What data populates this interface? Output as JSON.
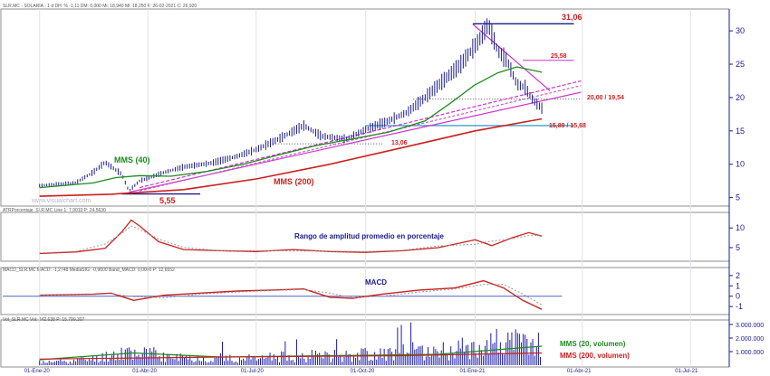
{
  "headers": {
    "price": "SLR.MC - SOLARIA - 1 d DH: % -1,11 DM: 0,000 Mi: 18,940 Mi: 18,250 F: 26-02-2021 C: 26,920",
    "atr": "ATRPorcentaje_SLR.MC Line 1: 7,9019 P: 24,5630",
    "macd": "MACD_SLR.MC MACD: -1,2748 MediaSIG: -0,9600 Band_MACD: 0,0000 P: 12,6552",
    "vol": "Vol_SLR.MC Vol: 242.638 P: 15.799.307"
  },
  "watermark": "www.visualchart.com",
  "annotations": {
    "mms40": "MMS (40)",
    "mms200": "MMS (200)",
    "low": "5,55",
    "high": "31,06",
    "level_25": "25,58",
    "level_20": "20,00 / 19,54",
    "level_15": "15,89 / 15,68",
    "level_13": "13,06",
    "atr_title": "Rango de amplitud promedio en porcentaje",
    "macd_title": "MACD",
    "vol_mms20": "MMS (20, volumen)",
    "vol_mms200": "MMS (200, volumen)"
  },
  "colors": {
    "price_bars": "#1a1a8c",
    "mms40": "#1f8a1f",
    "mms200": "#cc1f1f",
    "trend": "#cc33cc",
    "channel": "#c060c0",
    "support": "#3fa0d0",
    "hline_blue": "#1a1a8c",
    "axis": "#1a1a8c"
  },
  "chart_data": [
    {
      "type": "line",
      "panel": "price",
      "title": "",
      "ylim": [
        4,
        33
      ],
      "y_ticks": [
        "5",
        "10",
        "15",
        "20",
        "25",
        "30"
      ],
      "x_ticks": [
        "01-Ene-20",
        "01-Abr-20",
        "01-Jul-20",
        "01-Oct-20",
        "01-Ene-21",
        "01-Abr-21",
        "01-Jul-21"
      ],
      "series": [
        {
          "name": "Precio",
          "x": [
            "2020-01-01",
            "2020-01-31",
            "2020-02-15",
            "2020-02-25",
            "2020-03-10",
            "2020-03-16",
            "2020-03-25",
            "2020-04-15",
            "2020-05-01",
            "2020-05-25",
            "2020-06-15",
            "2020-07-01",
            "2020-07-20",
            "2020-08-10",
            "2020-08-25",
            "2020-09-15",
            "2020-10-01",
            "2020-10-20",
            "2020-11-05",
            "2020-11-20",
            "2020-12-05",
            "2020-12-20",
            "2021-01-04",
            "2021-01-12",
            "2021-01-20",
            "2021-01-28",
            "2021-02-05",
            "2021-02-12",
            "2021-02-19",
            "2021-02-26"
          ],
          "values": [
            6.8,
            7.2,
            8.8,
            10.3,
            8.5,
            6.0,
            7.5,
            8.8,
            9.6,
            10.2,
            11.2,
            12.2,
            13.8,
            15.8,
            14.2,
            13.8,
            15.2,
            16.5,
            17.8,
            20.0,
            22.5,
            25.0,
            28.5,
            31.0,
            27.0,
            25.5,
            22.0,
            21.5,
            19.5,
            18.4
          ]
        },
        {
          "name": "MMS (40)",
          "x": [
            "2020-01-01",
            "2020-02-15",
            "2020-03-05",
            "2020-03-25",
            "2020-04-20",
            "2020-05-20",
            "2020-06-20",
            "2020-07-20",
            "2020-08-20",
            "2020-09-20",
            "2020-10-20",
            "2020-11-20",
            "2020-12-10",
            "2020-12-31",
            "2021-01-20",
            "2021-02-05",
            "2021-02-26"
          ],
          "values": [
            6.5,
            7.2,
            8.0,
            8.3,
            8.2,
            8.9,
            10.0,
            11.4,
            12.8,
            13.8,
            14.8,
            16.5,
            19.0,
            21.8,
            23.7,
            24.6,
            23.8
          ]
        },
        {
          "name": "MMS (200)",
          "x": [
            "2020-01-01",
            "2020-03-01",
            "2020-05-01",
            "2020-07-01",
            "2020-09-01",
            "2020-11-01",
            "2021-01-01",
            "2021-02-26"
          ],
          "values": [
            5.2,
            5.5,
            6.2,
            7.8,
            10.0,
            12.5,
            15.0,
            16.8
          ]
        }
      ],
      "lines": [
        {
          "kind": "horizontal",
          "y": 31.06,
          "x0": "2020-12-30",
          "x1": "2021-03-25"
        },
        {
          "kind": "horizontal",
          "y": 25.58,
          "x0": "2021-02-10",
          "x1": "2021-03-25"
        },
        {
          "kind": "horizontal",
          "y": 19.77,
          "x0": "2020-11-10",
          "x1": "2021-03-31"
        },
        {
          "kind": "horizontal",
          "y": 15.8,
          "x0": "2020-10-01",
          "x1": "2021-03-25"
        },
        {
          "kind": "horizontal",
          "y": 13.06,
          "x0": "2020-07-15",
          "x1": "2020-10-15"
        },
        {
          "kind": "horizontal",
          "y": 5.55,
          "x0": "2020-03-10",
          "x1": "2020-05-15"
        },
        {
          "kind": "trend",
          "from": [
            "2020-03-16",
            5.8
          ],
          "to": [
            "2021-03-31",
            20.8
          ]
        },
        {
          "kind": "trend",
          "from": [
            "2020-03-25",
            6.5
          ],
          "to": [
            "2021-03-31",
            22.5
          ]
        },
        {
          "kind": "trend",
          "from": [
            "2020-03-25",
            6.0
          ],
          "to": [
            "2021-03-31",
            21.8
          ]
        },
        {
          "kind": "trend",
          "from": [
            "2020-12-30",
            31.0
          ],
          "to": [
            "2021-03-05",
            21.0
          ]
        }
      ]
    },
    {
      "type": "line",
      "panel": "atr",
      "ylim": [
        2,
        13.5
      ],
      "y_ticks": [
        "5",
        "10"
      ],
      "series": [
        {
          "name": "ATR %",
          "x": [
            "2020-01-01",
            "2020-02-01",
            "2020-02-25",
            "2020-03-10",
            "2020-03-18",
            "2020-03-25",
            "2020-04-10",
            "2020-05-01",
            "2020-06-01",
            "2020-07-01",
            "2020-08-01",
            "2020-09-01",
            "2020-10-01",
            "2020-11-01",
            "2020-12-01",
            "2021-01-01",
            "2021-01-15",
            "2021-02-01",
            "2021-02-15",
            "2021-02-26"
          ],
          "values": [
            3.5,
            3.9,
            4.8,
            9.0,
            12.0,
            10.5,
            6.5,
            4.5,
            4.2,
            4.0,
            4.5,
            4.0,
            3.8,
            4.2,
            5.0,
            7.0,
            5.5,
            7.5,
            8.8,
            7.9
          ]
        }
      ]
    },
    {
      "type": "line",
      "panel": "macd",
      "ylim": [
        -1.6,
        2.6
      ],
      "y_ticks": [
        "-1",
        "0",
        "1",
        "2"
      ],
      "series": [
        {
          "name": "MACD",
          "x": [
            "2020-01-01",
            "2020-02-15",
            "2020-03-01",
            "2020-03-20",
            "2020-04-15",
            "2020-05-15",
            "2020-06-15",
            "2020-07-15",
            "2020-08-10",
            "2020-09-01",
            "2020-09-20",
            "2020-10-15",
            "2020-11-15",
            "2020-12-15",
            "2021-01-08",
            "2021-01-25",
            "2021-02-10",
            "2021-02-26"
          ],
          "values": [
            0.1,
            0.2,
            0.3,
            -0.4,
            0.1,
            0.3,
            0.5,
            0.6,
            0.7,
            -0.1,
            -0.2,
            0.2,
            0.6,
            0.8,
            1.5,
            0.8,
            -0.4,
            -1.27
          ]
        }
      ]
    },
    {
      "type": "bar",
      "panel": "volume",
      "ylim": [
        0,
        3200000
      ],
      "y_ticks": [
        "1.000.000",
        "2.000.000",
        "3.000.000"
      ],
      "series": [
        {
          "name": "Volumen",
          "x": [
            "2020-01-15",
            "2020-02-15",
            "2020-03-15",
            "2020-04-15",
            "2020-05-15",
            "2020-06-15",
            "2020-07-15",
            "2020-08-15",
            "2020-09-15",
            "2020-10-15",
            "2020-11-15",
            "2020-12-15",
            "2021-01-15",
            "2021-02-15"
          ],
          "values": [
            350000,
            700000,
            1600000,
            900000,
            800000,
            700000,
            900000,
            1000000,
            1200000,
            1300000,
            1600000,
            1700000,
            2600000,
            2400000
          ]
        },
        {
          "name": "MMS (20, volumen)",
          "x": [
            "2020-01-01",
            "2020-03-20",
            "2020-06-01",
            "2020-09-01",
            "2020-12-01",
            "2021-02-26"
          ],
          "values": [
            400000,
            900000,
            600000,
            700000,
            800000,
            1400000
          ]
        },
        {
          "name": "MMS (200, volumen)",
          "x": [
            "2020-01-01",
            "2020-06-01",
            "2020-11-01",
            "2021-02-26"
          ],
          "values": [
            450000,
            600000,
            700000,
            900000
          ]
        }
      ]
    }
  ]
}
